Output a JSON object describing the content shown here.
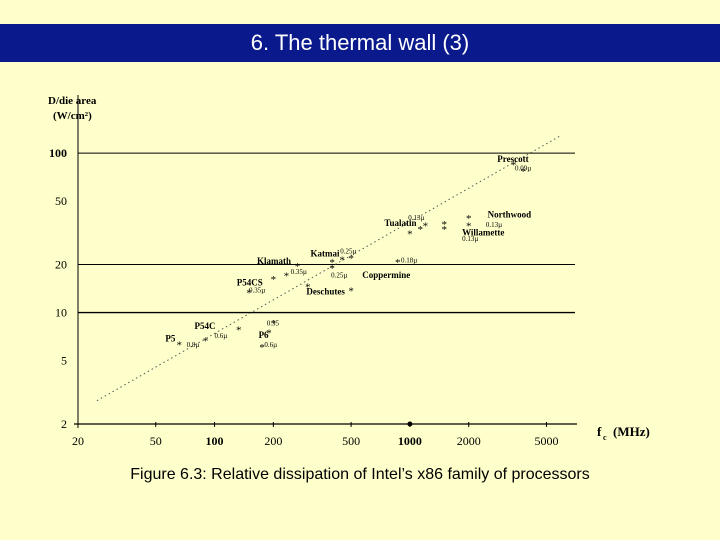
{
  "slide": {
    "title": "6. The thermal wall (3)",
    "caption": "Figure 6.3: Relative dissipation of Intel’s x86 family of processors"
  },
  "chart_data": {
    "type": "scatter",
    "x_scale": "log",
    "y_scale": "log",
    "xlim": [
      20,
      7000
    ],
    "ylim": [
      2,
      150
    ],
    "ylabel_line1": "D/die area",
    "ylabel_line2": "(W/cm²)",
    "xlabel": "f",
    "xlabel_sub": "c",
    "xlabel_unit": "(MHz)",
    "x_ticks": [
      20,
      50,
      100,
      200,
      500,
      1000,
      2000,
      5000
    ],
    "x_tick_labels": [
      "20",
      "50",
      "100",
      "200",
      "500",
      "1000",
      "2000",
      "5000"
    ],
    "y_ticks": [
      2,
      5,
      10,
      20,
      50,
      100
    ],
    "y_tick_labels": [
      "2",
      "5",
      "10",
      "20",
      "50",
      "100"
    ],
    "reference_lines_y": [
      10,
      20,
      100
    ],
    "trend_line": {
      "x": [
        25,
        6000
      ],
      "y": [
        2.8,
        130
      ]
    },
    "points": [
      {
        "x": 66,
        "y": 6.3
      },
      {
        "x": 90,
        "y": 6.7
      },
      {
        "x": 133,
        "y": 7.8
      },
      {
        "x": 175,
        "y": 6.1
      },
      {
        "x": 190,
        "y": 7.5
      },
      {
        "x": 200,
        "y": 8.6
      },
      {
        "x": 150,
        "y": 13.4
      },
      {
        "x": 200,
        "y": 16.2
      },
      {
        "x": 233,
        "y": 17.1
      },
      {
        "x": 266,
        "y": 19.6
      },
      {
        "x": 300,
        "y": 14.6
      },
      {
        "x": 400,
        "y": 19.0
      },
      {
        "x": 400,
        "y": 20.8
      },
      {
        "x": 450,
        "y": 21.5
      },
      {
        "x": 500,
        "y": 22.0
      },
      {
        "x": 500,
        "y": 13.7
      },
      {
        "x": 866,
        "y": 20.8
      },
      {
        "x": 1000,
        "y": 31.2
      },
      {
        "x": 1130,
        "y": 33.4
      },
      {
        "x": 1200,
        "y": 35.2
      },
      {
        "x": 1500,
        "y": 33.4
      },
      {
        "x": 1500,
        "y": 35.8
      },
      {
        "x": 2000,
        "y": 35.2
      },
      {
        "x": 2000,
        "y": 39.2
      },
      {
        "x": 3400,
        "y": 85.0
      },
      {
        "x": 3800,
        "y": 77.0
      }
    ],
    "labels": [
      {
        "text": "Prescott",
        "x": 2800,
        "y": 88,
        "size": 9,
        "bold": true
      },
      {
        "text": "0.09µ",
        "x": 3450,
        "y": 78,
        "size": 7,
        "bold": false
      },
      {
        "text": "Northwood",
        "x": 2500,
        "y": 39.5,
        "size": 9,
        "bold": true
      },
      {
        "text": "0.13µ",
        "x": 2450,
        "y": 34.5,
        "size": 7,
        "bold": false
      },
      {
        "text": "Willamette",
        "x": 1850,
        "y": 30.5,
        "size": 9,
        "bold": true
      },
      {
        "text": "0.13µ",
        "x": 1850,
        "y": 28.0,
        "size": 7,
        "bold": false
      },
      {
        "text": "0.13µ",
        "x": 980,
        "y": 38.0,
        "size": 7,
        "bold": false
      },
      {
        "text": "Tualatin",
        "x": 740,
        "y": 34.8,
        "size": 9,
        "bold": true
      },
      {
        "text": "Katmai",
        "x": 310,
        "y": 22.5,
        "size": 9,
        "bold": true
      },
      {
        "text": "0.25µ",
        "x": 440,
        "y": 23.5,
        "size": 7,
        "bold": false
      },
      {
        "text": "Klamath",
        "x": 165,
        "y": 20.2,
        "size": 9,
        "bold": true
      },
      {
        "text": "0.35µ",
        "x": 245,
        "y": 17.4,
        "size": 7,
        "bold": false
      },
      {
        "text": "0.25µ",
        "x": 395,
        "y": 16.6,
        "size": 7,
        "bold": false
      },
      {
        "text": "0.18µ",
        "x": 900,
        "y": 20.6,
        "size": 7,
        "bold": false
      },
      {
        "text": "Coppermine",
        "x": 570,
        "y": 16.5,
        "size": 9,
        "bold": true
      },
      {
        "text": "Deschutes",
        "x": 295,
        "y": 13.0,
        "size": 9,
        "bold": true
      },
      {
        "text": "P54CS",
        "x": 130,
        "y": 14.8,
        "size": 9,
        "bold": true
      },
      {
        "text": "0.35µ",
        "x": 150,
        "y": 13.4,
        "size": 7,
        "bold": false
      },
      {
        "text": "0.35",
        "x": 185,
        "y": 8.3,
        "size": 7,
        "bold": false
      },
      {
        "text": "P54C",
        "x": 79,
        "y": 7.9,
        "size": 9,
        "bold": true
      },
      {
        "text": "0.6µ",
        "x": 100,
        "y": 6.9,
        "size": 7,
        "bold": false
      },
      {
        "text": "P6",
        "x": 168,
        "y": 6.9,
        "size": 9,
        "bold": true
      },
      {
        "text": "0.6µ",
        "x": 180,
        "y": 6.1,
        "size": 7,
        "bold": false
      },
      {
        "text": "P5",
        "x": 56,
        "y": 6.6,
        "size": 9,
        "bold": true
      },
      {
        "text": "0.8µ",
        "x": 72,
        "y": 6.1,
        "size": 7,
        "bold": false
      }
    ]
  }
}
